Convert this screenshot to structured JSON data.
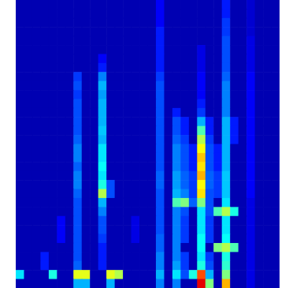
{
  "chart_data": {
    "type": "heatmap",
    "color": "jet",
    "tick_labels": false,
    "zlim": [
      0,
      100
    ],
    "values": [
      [
        5,
        5,
        5,
        5,
        5,
        5,
        5,
        5,
        5,
        5,
        5,
        5,
        5,
        5,
        5,
        5,
        5,
        12,
        5,
        5,
        5,
        5,
        5,
        5,
        5,
        15,
        5,
        5,
        8,
        5,
        5,
        5
      ],
      [
        5,
        5,
        5,
        5,
        5,
        5,
        5,
        5,
        5,
        5,
        5,
        5,
        5,
        5,
        5,
        5,
        5,
        12,
        5,
        5,
        5,
        5,
        5,
        5,
        5,
        15,
        5,
        5,
        8,
        5,
        5,
        5
      ],
      [
        5,
        5,
        5,
        5,
        5,
        5,
        5,
        5,
        5,
        5,
        5,
        5,
        5,
        5,
        5,
        5,
        5,
        12,
        5,
        5,
        5,
        5,
        5,
        5,
        5,
        18,
        5,
        5,
        8,
        5,
        5,
        5
      ],
      [
        5,
        5,
        5,
        5,
        5,
        5,
        5,
        5,
        5,
        5,
        5,
        5,
        5,
        5,
        5,
        5,
        5,
        15,
        5,
        5,
        5,
        5,
        5,
        5,
        5,
        18,
        5,
        5,
        8,
        5,
        5,
        5
      ],
      [
        5,
        5,
        5,
        5,
        5,
        5,
        5,
        5,
        5,
        5,
        5,
        5,
        5,
        5,
        5,
        5,
        5,
        15,
        5,
        5,
        5,
        5,
        5,
        5,
        5,
        20,
        5,
        5,
        10,
        5,
        5,
        5
      ],
      [
        5,
        5,
        5,
        5,
        5,
        5,
        5,
        5,
        5,
        5,
        5,
        5,
        5,
        5,
        5,
        5,
        5,
        15,
        5,
        5,
        5,
        5,
        10,
        5,
        5,
        20,
        5,
        5,
        10,
        5,
        5,
        5
      ],
      [
        5,
        5,
        5,
        5,
        5,
        5,
        5,
        5,
        5,
        5,
        12,
        5,
        5,
        5,
        5,
        5,
        5,
        15,
        5,
        5,
        5,
        5,
        10,
        5,
        5,
        20,
        5,
        5,
        10,
        5,
        5,
        5
      ],
      [
        5,
        5,
        5,
        5,
        5,
        5,
        5,
        5,
        5,
        5,
        15,
        5,
        5,
        5,
        5,
        5,
        5,
        15,
        5,
        5,
        5,
        5,
        10,
        5,
        5,
        20,
        5,
        5,
        10,
        5,
        5,
        5
      ],
      [
        5,
        5,
        5,
        5,
        5,
        5,
        5,
        18,
        5,
        5,
        25,
        5,
        5,
        5,
        5,
        5,
        5,
        18,
        5,
        5,
        5,
        5,
        12,
        5,
        5,
        22,
        5,
        5,
        12,
        5,
        5,
        5
      ],
      [
        5,
        5,
        5,
        5,
        5,
        5,
        5,
        20,
        5,
        5,
        30,
        5,
        5,
        5,
        5,
        5,
        5,
        20,
        5,
        5,
        5,
        5,
        12,
        5,
        5,
        25,
        5,
        5,
        12,
        5,
        5,
        5
      ],
      [
        5,
        5,
        5,
        5,
        5,
        5,
        5,
        18,
        5,
        5,
        28,
        5,
        5,
        5,
        5,
        5,
        5,
        20,
        5,
        5,
        5,
        5,
        12,
        5,
        5,
        25,
        5,
        5,
        12,
        5,
        5,
        5
      ],
      [
        5,
        5,
        5,
        5,
        5,
        5,
        5,
        20,
        5,
        5,
        30,
        5,
        5,
        5,
        5,
        5,
        5,
        20,
        5,
        5,
        5,
        5,
        15,
        5,
        5,
        25,
        5,
        5,
        12,
        5,
        5,
        5
      ],
      [
        5,
        5,
        5,
        5,
        5,
        5,
        5,
        20,
        5,
        5,
        30,
        5,
        5,
        5,
        5,
        5,
        5,
        20,
        5,
        15,
        5,
        5,
        18,
        5,
        5,
        25,
        5,
        5,
        12,
        5,
        5,
        5
      ],
      [
        5,
        5,
        5,
        5,
        5,
        5,
        5,
        20,
        5,
        5,
        30,
        5,
        5,
        5,
        5,
        5,
        5,
        20,
        5,
        20,
        15,
        5,
        30,
        15,
        5,
        30,
        15,
        5,
        12,
        5,
        5,
        5
      ],
      [
        5,
        5,
        5,
        5,
        5,
        5,
        5,
        20,
        5,
        5,
        32,
        5,
        5,
        5,
        5,
        5,
        5,
        20,
        5,
        20,
        15,
        5,
        45,
        15,
        5,
        30,
        15,
        5,
        12,
        5,
        5,
        5
      ],
      [
        5,
        5,
        5,
        5,
        5,
        5,
        5,
        22,
        5,
        5,
        30,
        5,
        5,
        5,
        5,
        5,
        5,
        20,
        5,
        22,
        18,
        5,
        55,
        18,
        5,
        30,
        15,
        5,
        12,
        5,
        5,
        5
      ],
      [
        5,
        5,
        5,
        5,
        5,
        5,
        5,
        25,
        5,
        5,
        35,
        5,
        5,
        5,
        5,
        5,
        5,
        20,
        5,
        25,
        20,
        15,
        62,
        20,
        15,
        30,
        5,
        5,
        12,
        5,
        5,
        5
      ],
      [
        5,
        5,
        5,
        5,
        5,
        5,
        5,
        25,
        5,
        5,
        35,
        5,
        5,
        5,
        5,
        5,
        5,
        20,
        5,
        25,
        20,
        15,
        68,
        20,
        15,
        30,
        5,
        5,
        12,
        5,
        5,
        5
      ],
      [
        5,
        5,
        5,
        5,
        5,
        5,
        5,
        22,
        5,
        5,
        38,
        5,
        5,
        5,
        5,
        5,
        5,
        20,
        5,
        25,
        20,
        15,
        65,
        20,
        15,
        30,
        5,
        5,
        12,
        5,
        5,
        5
      ],
      [
        5,
        5,
        5,
        5,
        5,
        5,
        5,
        25,
        5,
        5,
        35,
        5,
        5,
        5,
        5,
        5,
        5,
        22,
        5,
        28,
        22,
        18,
        70,
        22,
        18,
        32,
        5,
        5,
        12,
        5,
        5,
        5
      ],
      [
        5,
        5,
        5,
        5,
        5,
        5,
        5,
        25,
        5,
        5,
        40,
        20,
        5,
        5,
        5,
        5,
        5,
        22,
        5,
        28,
        22,
        18,
        62,
        22,
        18,
        32,
        5,
        5,
        12,
        5,
        5,
        5
      ],
      [
        5,
        5,
        5,
        5,
        5,
        5,
        5,
        22,
        5,
        5,
        55,
        20,
        5,
        5,
        5,
        5,
        5,
        20,
        5,
        30,
        25,
        18,
        65,
        20,
        18,
        32,
        5,
        5,
        12,
        5,
        5,
        5
      ],
      [
        5,
        5,
        5,
        5,
        5,
        5,
        5,
        20,
        5,
        5,
        30,
        5,
        5,
        5,
        5,
        5,
        5,
        20,
        5,
        45,
        50,
        22,
        50,
        20,
        5,
        35,
        5,
        5,
        10,
        5,
        5,
        5
      ],
      [
        5,
        5,
        5,
        5,
        5,
        5,
        5,
        20,
        5,
        5,
        25,
        5,
        5,
        5,
        5,
        5,
        5,
        20,
        5,
        25,
        20,
        5,
        35,
        20,
        45,
        55,
        40,
        5,
        10,
        5,
        5,
        5
      ],
      [
        5,
        5,
        5,
        5,
        5,
        12,
        5,
        20,
        5,
        5,
        20,
        5,
        5,
        5,
        10,
        5,
        5,
        20,
        5,
        25,
        18,
        5,
        35,
        18,
        5,
        35,
        5,
        5,
        10,
        5,
        5,
        5
      ],
      [
        5,
        5,
        5,
        5,
        5,
        12,
        5,
        20,
        5,
        5,
        20,
        5,
        5,
        5,
        10,
        5,
        5,
        20,
        5,
        25,
        18,
        5,
        35,
        18,
        5,
        35,
        5,
        5,
        10,
        5,
        5,
        5
      ],
      [
        5,
        5,
        5,
        5,
        5,
        12,
        5,
        20,
        5,
        5,
        18,
        5,
        5,
        5,
        10,
        5,
        5,
        22,
        5,
        25,
        18,
        5,
        38,
        18,
        5,
        38,
        5,
        5,
        10,
        5,
        5,
        5
      ],
      [
        5,
        5,
        5,
        5,
        5,
        5,
        5,
        20,
        5,
        5,
        15,
        5,
        5,
        5,
        5,
        5,
        5,
        22,
        5,
        25,
        5,
        5,
        38,
        5,
        50,
        55,
        45,
        5,
        10,
        5,
        5,
        5
      ],
      [
        5,
        5,
        5,
        15,
        5,
        5,
        5,
        20,
        5,
        5,
        15,
        5,
        5,
        5,
        5,
        5,
        5,
        25,
        5,
        25,
        18,
        5,
        35,
        18,
        5,
        40,
        5,
        5,
        10,
        5,
        5,
        5
      ],
      [
        5,
        5,
        5,
        15,
        5,
        5,
        5,
        22,
        5,
        5,
        15,
        5,
        5,
        5,
        5,
        5,
        5,
        25,
        5,
        28,
        18,
        5,
        40,
        20,
        5,
        42,
        5,
        5,
        10,
        5,
        5,
        5
      ],
      [
        35,
        5,
        5,
        5,
        40,
        5,
        5,
        60,
        60,
        5,
        5,
        60,
        55,
        5,
        5,
        5,
        5,
        30,
        5,
        35,
        20,
        40,
        80,
        30,
        5,
        50,
        5,
        5,
        10,
        5,
        5,
        5
      ],
      [
        5,
        5,
        5,
        5,
        5,
        5,
        5,
        30,
        30,
        5,
        5,
        30,
        5,
        5,
        5,
        5,
        5,
        25,
        5,
        25,
        5,
        5,
        90,
        50,
        5,
        70,
        5,
        5,
        10,
        5,
        5,
        5
      ]
    ]
  }
}
